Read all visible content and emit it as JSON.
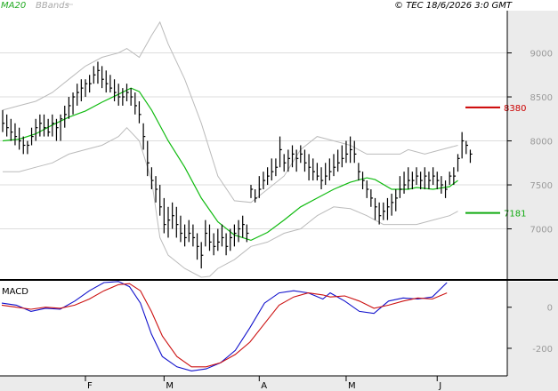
{
  "header": {
    "ma_label": "MA20",
    "bb_label": "BBands",
    "copyright": "© TEC 18/6/2026 3:0 GMT"
  },
  "macd_title": "MACD",
  "colors": {
    "ma": "#11bb11",
    "bands": "#bbbbbb",
    "bars": "#000000",
    "resistance": "#cc0000",
    "support": "#11aa11",
    "macd_line": "#1111cc",
    "signal_line": "#cc1111",
    "grid": "#dddddd",
    "panel_bg": "#ebebeb"
  },
  "chart_data": [
    {
      "type": "ohlc",
      "title": "",
      "ylim": [
        6450,
        9480
      ],
      "y_ticks": [
        {
          "value": 9000,
          "label": "9000"
        },
        {
          "value": 8500,
          "label": "8500"
        },
        {
          "value": 8000,
          "label": "8000"
        },
        {
          "value": 7500,
          "label": "7500"
        },
        {
          "value": 7000,
          "label": "7000"
        }
      ],
      "levels": [
        {
          "name": "resistance",
          "value": 8380,
          "label": "8380",
          "color": "#cc0000"
        },
        {
          "name": "support",
          "value": 7181,
          "label": "7181",
          "color": "#11aa11"
        }
      ],
      "x_months": [
        {
          "label": "F",
          "index": 20
        },
        {
          "label": "M",
          "index": 39
        },
        {
          "label": "A",
          "index": 62
        },
        {
          "label": "M",
          "index": 83
        },
        {
          "label": "J",
          "index": 105
        }
      ],
      "bars": [
        [
          8350,
          8100,
          8200
        ],
        [
          8300,
          8050,
          8150
        ],
        [
          8250,
          8000,
          8100
        ],
        [
          8200,
          7950,
          8050
        ],
        [
          8150,
          7900,
          8000
        ],
        [
          8050,
          7850,
          7950
        ],
        [
          8000,
          7850,
          7950
        ],
        [
          8150,
          7950,
          8050
        ],
        [
          8250,
          8000,
          8150
        ],
        [
          8300,
          8050,
          8200
        ],
        [
          8300,
          8050,
          8150
        ],
        [
          8250,
          8050,
          8100
        ],
        [
          8300,
          8050,
          8200
        ],
        [
          8250,
          8000,
          8150
        ],
        [
          8300,
          8000,
          8250
        ],
        [
          8400,
          8150,
          8300
        ],
        [
          8500,
          8250,
          8400
        ],
        [
          8550,
          8300,
          8500
        ],
        [
          8650,
          8400,
          8550
        ],
        [
          8700,
          8450,
          8600
        ],
        [
          8700,
          8500,
          8650
        ],
        [
          8750,
          8550,
          8650
        ],
        [
          8850,
          8650,
          8750
        ],
        [
          8900,
          8650,
          8800
        ],
        [
          8850,
          8600,
          8700
        ],
        [
          8800,
          8550,
          8650
        ],
        [
          8750,
          8550,
          8600
        ],
        [
          8700,
          8450,
          8550
        ],
        [
          8650,
          8400,
          8500
        ],
        [
          8600,
          8400,
          8500
        ],
        [
          8650,
          8450,
          8550
        ],
        [
          8600,
          8400,
          8500
        ],
        [
          8550,
          8300,
          8400
        ],
        [
          8450,
          8200,
          8300
        ],
        [
          8200,
          7900,
          8050
        ],
        [
          8000,
          7600,
          7750
        ],
        [
          7700,
          7450,
          7550
        ],
        [
          7600,
          7300,
          7450
        ],
        [
          7500,
          7150,
          7250
        ],
        [
          7350,
          6950,
          7050
        ],
        [
          7250,
          6900,
          7100
        ],
        [
          7300,
          7000,
          7150
        ],
        [
          7250,
          6900,
          7050
        ],
        [
          7150,
          6850,
          6950
        ],
        [
          7050,
          6800,
          6900
        ],
        [
          7100,
          6850,
          6950
        ],
        [
          7050,
          6800,
          6900
        ],
        [
          6950,
          6650,
          6800
        ],
        [
          6850,
          6550,
          6700
        ],
        [
          7100,
          6800,
          6950
        ],
        [
          7050,
          6750,
          6850
        ],
        [
          6950,
          6700,
          6800
        ],
        [
          7000,
          6750,
          6850
        ],
        [
          7050,
          6800,
          6900
        ],
        [
          6950,
          6700,
          6800
        ],
        [
          7000,
          6750,
          6900
        ],
        [
          7050,
          6800,
          6950
        ],
        [
          7100,
          6850,
          7000
        ],
        [
          7150,
          6900,
          7050
        ],
        [
          7050,
          6850,
          6950
        ],
        [
          7500,
          7350,
          7450
        ],
        [
          7450,
          7300,
          7350
        ],
        [
          7600,
          7350,
          7450
        ],
        [
          7650,
          7450,
          7550
        ],
        [
          7700,
          7500,
          7600
        ],
        [
          7800,
          7550,
          7650
        ],
        [
          7800,
          7600,
          7700
        ],
        [
          8050,
          7700,
          7900
        ],
        [
          7850,
          7650,
          7750
        ],
        [
          7900,
          7650,
          7800
        ],
        [
          7950,
          7700,
          7850
        ],
        [
          7900,
          7650,
          7800
        ],
        [
          7950,
          7750,
          7850
        ],
        [
          7900,
          7650,
          7750
        ],
        [
          7850,
          7550,
          7700
        ],
        [
          7800,
          7550,
          7650
        ],
        [
          7750,
          7550,
          7600
        ],
        [
          7700,
          7450,
          7550
        ],
        [
          7750,
          7500,
          7600
        ],
        [
          7800,
          7550,
          7650
        ],
        [
          7850,
          7600,
          7700
        ],
        [
          7900,
          7650,
          7750
        ],
        [
          7950,
          7700,
          7800
        ],
        [
          8000,
          7750,
          7850
        ],
        [
          8050,
          7750,
          7900
        ],
        [
          8000,
          7750,
          7850
        ],
        [
          7750,
          7550,
          7650
        ],
        [
          7650,
          7450,
          7550
        ],
        [
          7550,
          7350,
          7450
        ],
        [
          7450,
          7250,
          7350
        ],
        [
          7350,
          7100,
          7250
        ],
        [
          7300,
          7050,
          7150
        ],
        [
          7300,
          7100,
          7200
        ],
        [
          7350,
          7100,
          7250
        ],
        [
          7400,
          7150,
          7300
        ],
        [
          7450,
          7200,
          7350
        ],
        [
          7600,
          7350,
          7450
        ],
        [
          7650,
          7400,
          7500
        ],
        [
          7700,
          7450,
          7550
        ],
        [
          7650,
          7450,
          7550
        ],
        [
          7700,
          7500,
          7600
        ],
        [
          7650,
          7450,
          7550
        ],
        [
          7700,
          7450,
          7600
        ],
        [
          7650,
          7450,
          7550
        ],
        [
          7700,
          7500,
          7600
        ],
        [
          7650,
          7450,
          7550
        ],
        [
          7600,
          7400,
          7500
        ],
        [
          7550,
          7350,
          7450
        ],
        [
          7650,
          7500,
          7600
        ],
        [
          7700,
          7500,
          7600
        ],
        [
          7850,
          7650,
          7800
        ],
        [
          8100,
          7800,
          8000
        ],
        [
          8000,
          7850,
          7950
        ],
        [
          7900,
          7750,
          7850
        ]
      ],
      "ma20": [
        [
          0,
          8000
        ],
        [
          4,
          8020
        ],
        [
          8,
          8080
        ],
        [
          12,
          8180
        ],
        [
          16,
          8270
        ],
        [
          20,
          8340
        ],
        [
          24,
          8440
        ],
        [
          28,
          8530
        ],
        [
          31,
          8600
        ],
        [
          33,
          8560
        ],
        [
          36,
          8350
        ],
        [
          40,
          8000
        ],
        [
          44,
          7700
        ],
        [
          48,
          7350
        ],
        [
          52,
          7080
        ],
        [
          56,
          6930
        ],
        [
          60,
          6870
        ],
        [
          64,
          6960
        ],
        [
          68,
          7100
        ],
        [
          72,
          7250
        ],
        [
          76,
          7350
        ],
        [
          80,
          7450
        ],
        [
          84,
          7530
        ],
        [
          88,
          7580
        ],
        [
          90,
          7560
        ],
        [
          94,
          7450
        ],
        [
          98,
          7450
        ],
        [
          100,
          7470
        ],
        [
          104,
          7450
        ],
        [
          108,
          7480
        ],
        [
          110,
          7550
        ]
      ],
      "bb_upper": [
        [
          0,
          8350
        ],
        [
          4,
          8400
        ],
        [
          8,
          8450
        ],
        [
          12,
          8550
        ],
        [
          16,
          8700
        ],
        [
          20,
          8850
        ],
        [
          24,
          8950
        ],
        [
          28,
          9000
        ],
        [
          30,
          9050
        ],
        [
          33,
          8950
        ],
        [
          36,
          9200
        ],
        [
          38,
          9350
        ],
        [
          40,
          9100
        ],
        [
          44,
          8700
        ],
        [
          48,
          8200
        ],
        [
          52,
          7600
        ],
        [
          56,
          7320
        ],
        [
          60,
          7300
        ],
        [
          64,
          7450
        ],
        [
          68,
          7600
        ],
        [
          72,
          7900
        ],
        [
          76,
          8050
        ],
        [
          80,
          8000
        ],
        [
          84,
          7950
        ],
        [
          88,
          7850
        ],
        [
          92,
          7850
        ],
        [
          96,
          7850
        ],
        [
          98,
          7900
        ],
        [
          102,
          7850
        ],
        [
          106,
          7900
        ],
        [
          110,
          7950
        ]
      ],
      "bb_lower": [
        [
          0,
          7650
        ],
        [
          4,
          7650
        ],
        [
          8,
          7700
        ],
        [
          12,
          7750
        ],
        [
          16,
          7850
        ],
        [
          20,
          7900
        ],
        [
          24,
          7950
        ],
        [
          28,
          8050
        ],
        [
          30,
          8150
        ],
        [
          33,
          8000
        ],
        [
          36,
          7550
        ],
        [
          38,
          6900
        ],
        [
          40,
          6700
        ],
        [
          44,
          6550
        ],
        [
          48,
          6450
        ],
        [
          50,
          6460
        ],
        [
          52,
          6550
        ],
        [
          56,
          6650
        ],
        [
          60,
          6800
        ],
        [
          64,
          6850
        ],
        [
          68,
          6950
        ],
        [
          72,
          7000
        ],
        [
          76,
          7150
        ],
        [
          80,
          7250
        ],
        [
          84,
          7230
        ],
        [
          88,
          7150
        ],
        [
          92,
          7050
        ],
        [
          96,
          7050
        ],
        [
          100,
          7050
        ],
        [
          104,
          7100
        ],
        [
          108,
          7150
        ],
        [
          110,
          7200
        ]
      ]
    },
    {
      "type": "line",
      "title": "MACD",
      "ylim": [
        -330,
        120
      ],
      "y_ticks": [
        {
          "value": 0,
          "label": "0"
        },
        {
          "value": -200,
          "label": "-200"
        }
      ],
      "series": [
        {
          "values": [
            [
              0,
              20
            ],
            [
              4,
              10
            ],
            [
              8,
              -20
            ],
            [
              12,
              -5
            ],
            [
              16,
              -10
            ],
            [
              20,
              30
            ],
            [
              24,
              80
            ],
            [
              28,
              120
            ],
            [
              32,
              125
            ],
            [
              35,
              100
            ],
            [
              38,
              20
            ],
            [
              41,
              -130
            ],
            [
              44,
              -240
            ],
            [
              48,
              -290
            ],
            [
              52,
              -310
            ],
            [
              56,
              -300
            ],
            [
              60,
              -270
            ],
            [
              64,
              -210
            ],
            [
              68,
              -100
            ],
            [
              72,
              20
            ],
            [
              76,
              70
            ],
            [
              80,
              80
            ],
            [
              84,
              70
            ],
            [
              88,
              40
            ],
            [
              90,
              70
            ],
            [
              94,
              30
            ],
            [
              98,
              -20
            ],
            [
              102,
              -30
            ],
            [
              106,
              30
            ],
            [
              110,
              45
            ],
            [
              114,
              40
            ],
            [
              118,
              50
            ],
            [
              122,
              120
            ]
          ]
        },
        {
          "values": [
            [
              0,
              10
            ],
            [
              4,
              0
            ],
            [
              8,
              -10
            ],
            [
              12,
              0
            ],
            [
              16,
              -5
            ],
            [
              20,
              10
            ],
            [
              24,
              40
            ],
            [
              28,
              80
            ],
            [
              32,
              110
            ],
            [
              35,
              115
            ],
            [
              38,
              80
            ],
            [
              41,
              -20
            ],
            [
              44,
              -140
            ],
            [
              48,
              -240
            ],
            [
              52,
              -290
            ],
            [
              56,
              -290
            ],
            [
              60,
              -270
            ],
            [
              64,
              -230
            ],
            [
              68,
              -170
            ],
            [
              72,
              -80
            ],
            [
              76,
              10
            ],
            [
              80,
              50
            ],
            [
              84,
              70
            ],
            [
              88,
              60
            ],
            [
              90,
              50
            ],
            [
              94,
              55
            ],
            [
              98,
              30
            ],
            [
              102,
              -5
            ],
            [
              106,
              10
            ],
            [
              110,
              30
            ],
            [
              114,
              45
            ],
            [
              118,
              40
            ],
            [
              122,
              70
            ]
          ]
        }
      ]
    }
  ]
}
